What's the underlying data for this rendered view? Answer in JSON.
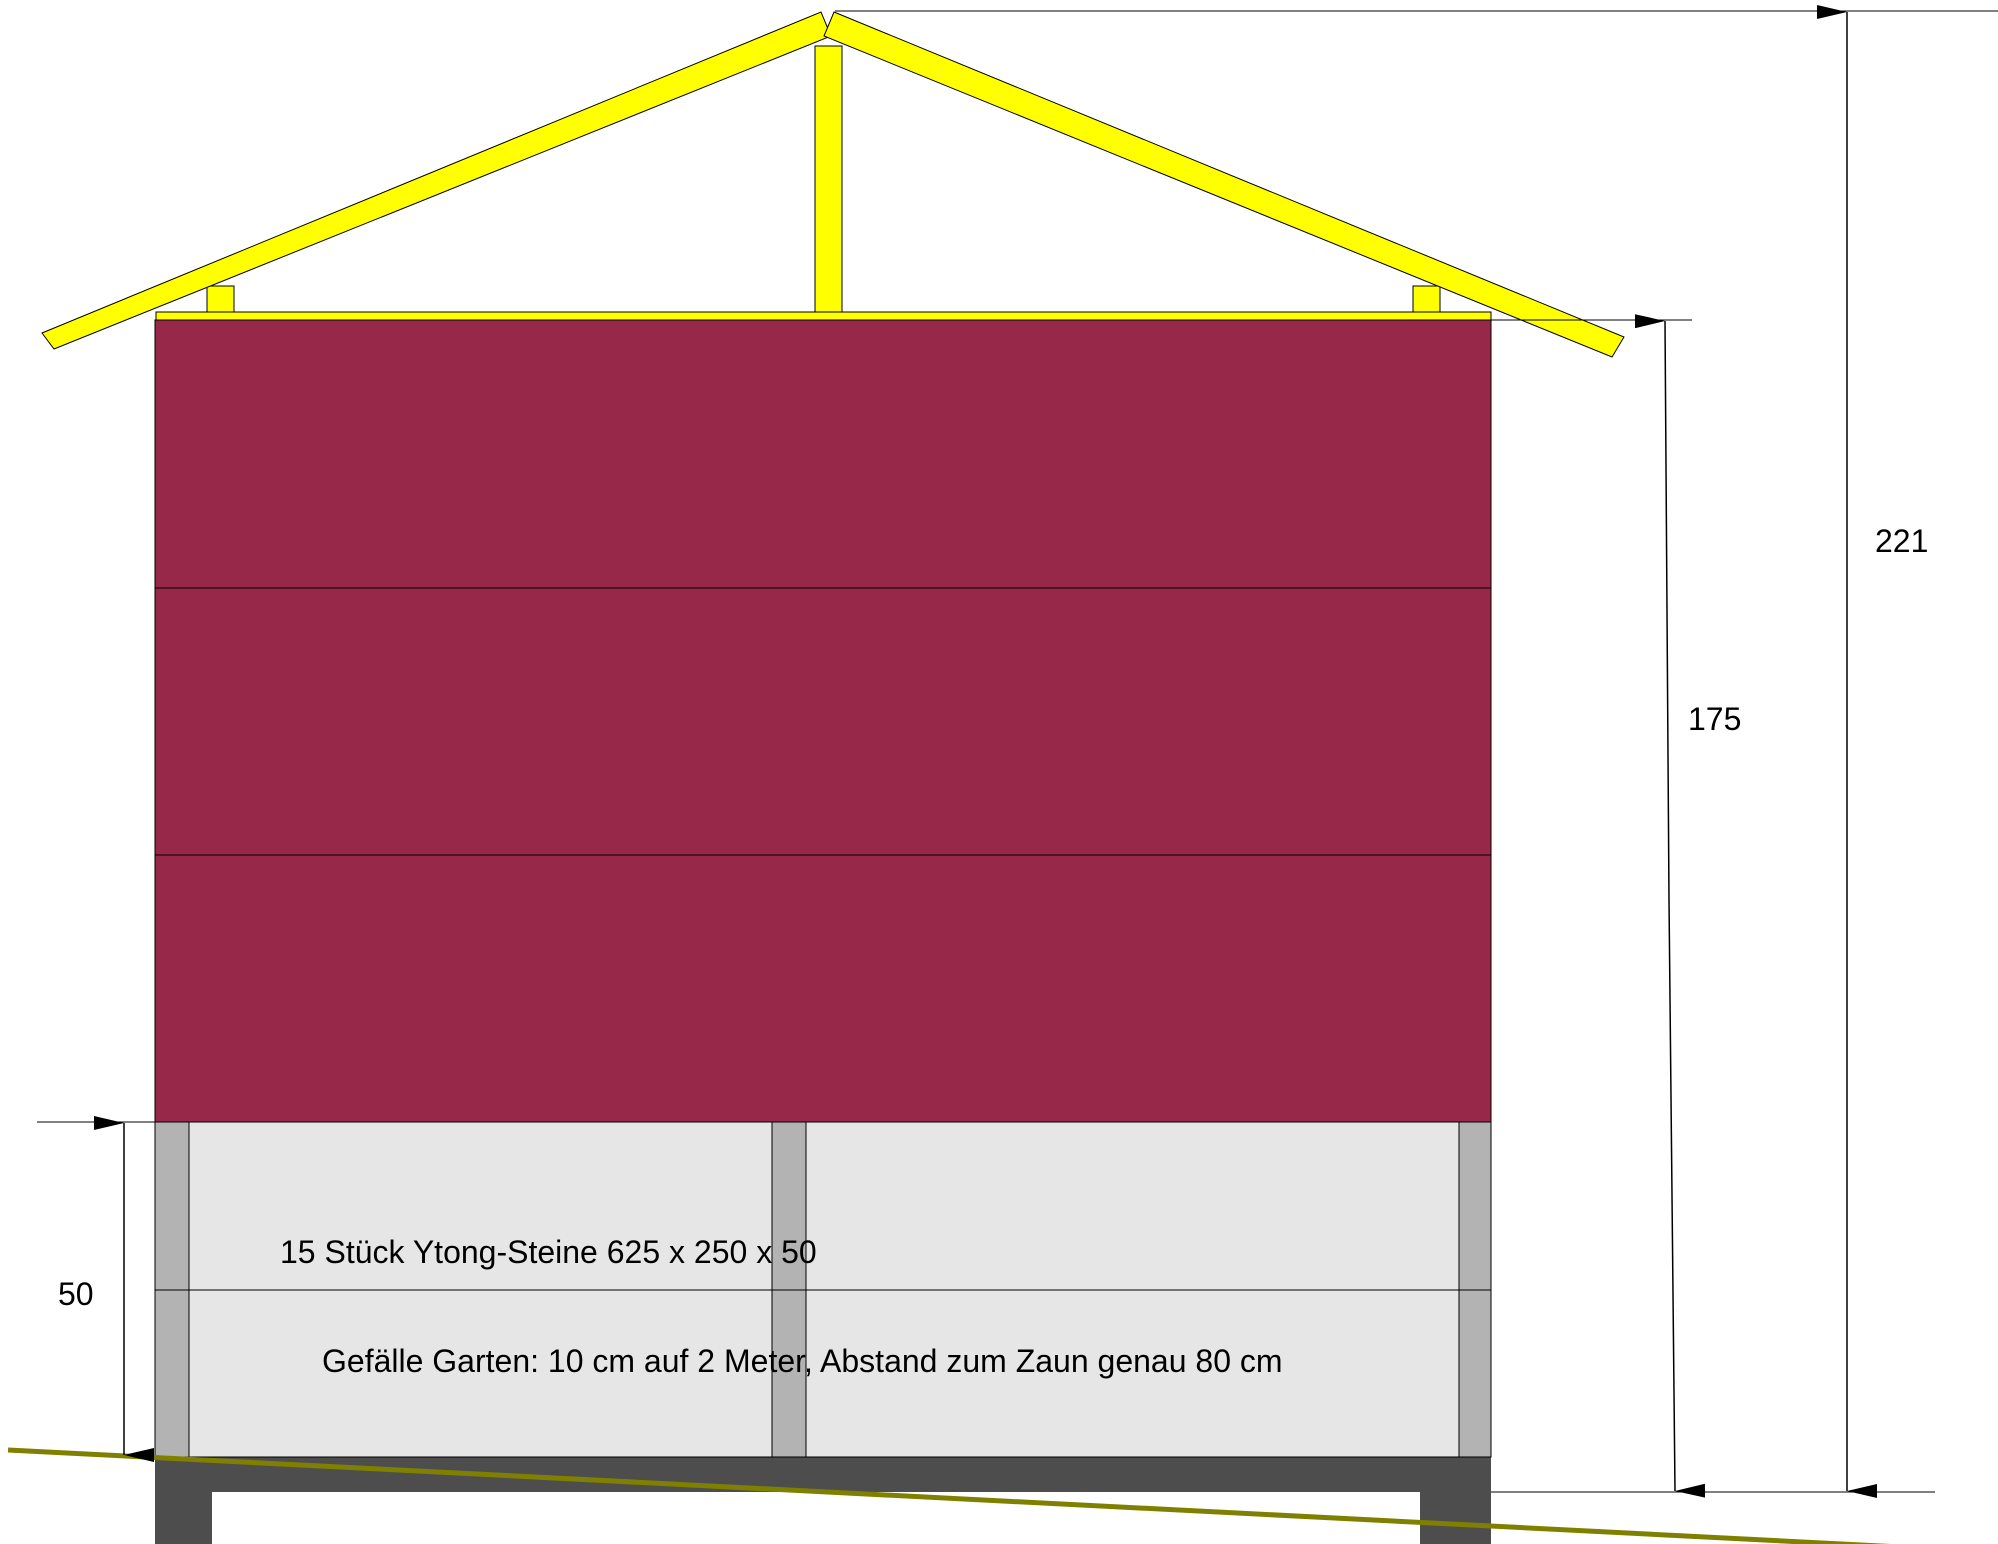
{
  "colors": {
    "wall": "#98284A",
    "wood": "#FFFF00",
    "block_light": "#E6E6E6",
    "block_dark": "#B3B3B3",
    "foundation": "#4D4D4D",
    "ground_line": "#808000",
    "line": "#000000"
  },
  "dimensions": {
    "total_height": "221",
    "wall_height": "175",
    "base_height": "50"
  },
  "notes": {
    "blocks": "15 Stück Ytong-Steine 625 x 250 x 50",
    "slope": "Gefälle Garten: 10 cm auf 2 Meter, Abstand zum Zaun genau 80 cm"
  }
}
